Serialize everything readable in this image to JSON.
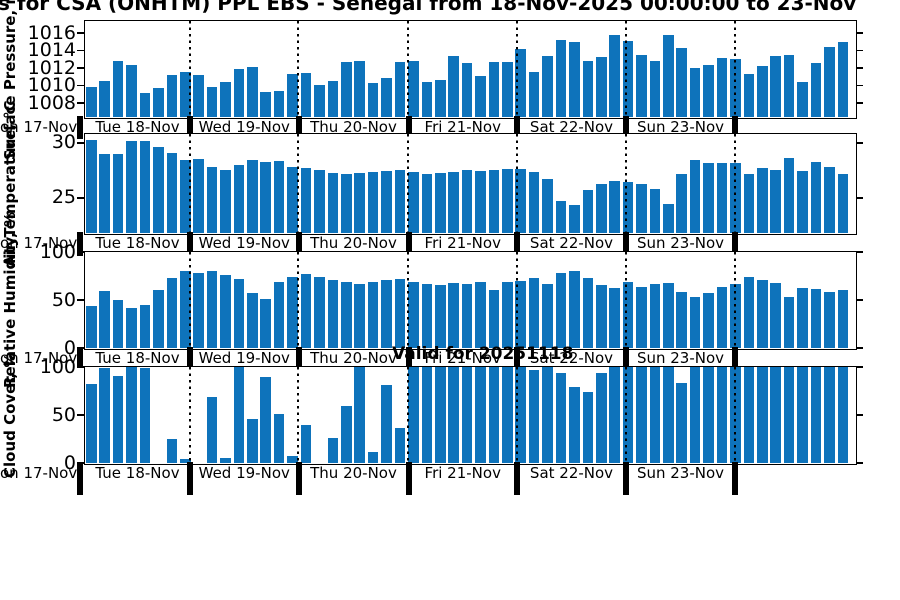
{
  "title": "s for CSA (ONHTM) PPL EBS  - Senegal from 18-Nov-2025 00:00:00 to 23-Nov",
  "watermark": "Valid for 20251118",
  "colors": {
    "bar": "#0e73bb",
    "axis": "#000000"
  },
  "chart_data": {
    "type": "bar",
    "x_leading_label": "on 17-Nov",
    "x_day_labels": [
      "Tue 18-Nov",
      "Wed 19-Nov",
      "Thu 20-Nov",
      "Fri 21-Nov",
      "Sat 22-Nov",
      "Sun 23-Nov"
    ],
    "bars_per_day": 8,
    "trailing_unlabeled_bars": 9,
    "legend": "none",
    "grid": "vertical dotted lines at day boundaries",
    "subplots": [
      {
        "ylabel": "Surface Pressure, mb",
        "ylim": [
          1006.4,
          1017.4
        ],
        "yticks": [
          1008,
          1010,
          1012,
          1014,
          1016
        ],
        "values": [
          1009.8,
          1010.5,
          1012.8,
          1012.3,
          1009.1,
          1009.7,
          1011.1,
          1011.5,
          1011.2,
          1009.8,
          1010.3,
          1011.9,
          1012.1,
          1009.2,
          1009.3,
          1011.3,
          1011.4,
          1010.0,
          1010.5,
          1012.6,
          1012.8,
          1010.2,
          1010.8,
          1012.7,
          1012.8,
          1010.3,
          1010.6,
          1013.3,
          1012.5,
          1011.0,
          1012.6,
          1012.6,
          1014.1,
          1011.5,
          1013.3,
          1015.2,
          1014.9,
          1012.8,
          1013.2,
          1015.7,
          1015.1,
          1013.5,
          1012.8,
          1015.7,
          1014.2,
          1012.0,
          1012.3,
          1013.1,
          1013.0,
          1011.3,
          1012.2,
          1013.3,
          1013.5,
          1010.4,
          1012.5,
          1014.4,
          1014.9
        ]
      },
      {
        "ylabel": "Air Temperature, °C",
        "ylim": [
          21.8,
          30.8
        ],
        "yticks": [
          25,
          30
        ],
        "values": [
          30.2,
          28.9,
          28.9,
          30.1,
          30.1,
          29.6,
          29.0,
          28.4,
          28.5,
          27.8,
          27.5,
          27.9,
          28.4,
          28.2,
          28.3,
          27.8,
          27.7,
          27.5,
          27.2,
          27.1,
          27.2,
          27.3,
          27.4,
          27.5,
          27.3,
          27.1,
          27.2,
          27.3,
          27.5,
          27.4,
          27.5,
          27.6,
          27.6,
          27.3,
          26.7,
          24.7,
          24.3,
          25.7,
          26.2,
          26.5,
          26.4,
          26.2,
          25.8,
          24.4,
          27.1,
          28.4,
          28.1,
          28.1,
          28.1,
          27.1,
          27.7,
          27.5,
          28.6,
          27.4,
          28.2,
          27.8,
          27.1
        ]
      },
      {
        "ylabel": "Relative Humidity, %",
        "ylim": [
          0,
          100
        ],
        "yticks": [
          0,
          50,
          100
        ],
        "values": [
          43,
          59,
          50,
          41,
          44,
          60,
          72,
          80,
          78,
          80,
          76,
          71,
          57,
          51,
          68,
          73,
          77,
          73,
          70,
          68,
          66,
          68,
          70,
          71,
          68,
          66,
          65,
          67,
          66,
          68,
          60,
          68,
          69,
          72,
          66,
          78,
          80,
          72,
          65,
          62,
          68,
          63,
          66,
          67,
          58,
          53,
          57,
          63,
          66,
          73,
          70,
          67,
          53,
          62,
          61,
          58,
          60
        ]
      },
      {
        "ylabel": "Cloud Cover, %",
        "ylim": [
          0,
          100
        ],
        "yticks": [
          0,
          50,
          100
        ],
        "values": [
          82,
          98,
          90,
          99,
          98,
          0,
          24,
          4,
          0,
          68,
          5,
          100,
          45,
          89,
          51,
          7,
          39,
          0,
          26,
          59,
          100,
          11,
          81,
          36,
          100,
          100,
          100,
          100,
          100,
          100,
          100,
          100,
          99,
          96,
          100,
          93,
          79,
          73,
          93,
          100,
          100,
          100,
          100,
          100,
          83,
          100,
          100,
          100,
          100,
          100,
          100,
          100,
          100,
          100,
          100,
          100,
          100
        ]
      }
    ]
  }
}
